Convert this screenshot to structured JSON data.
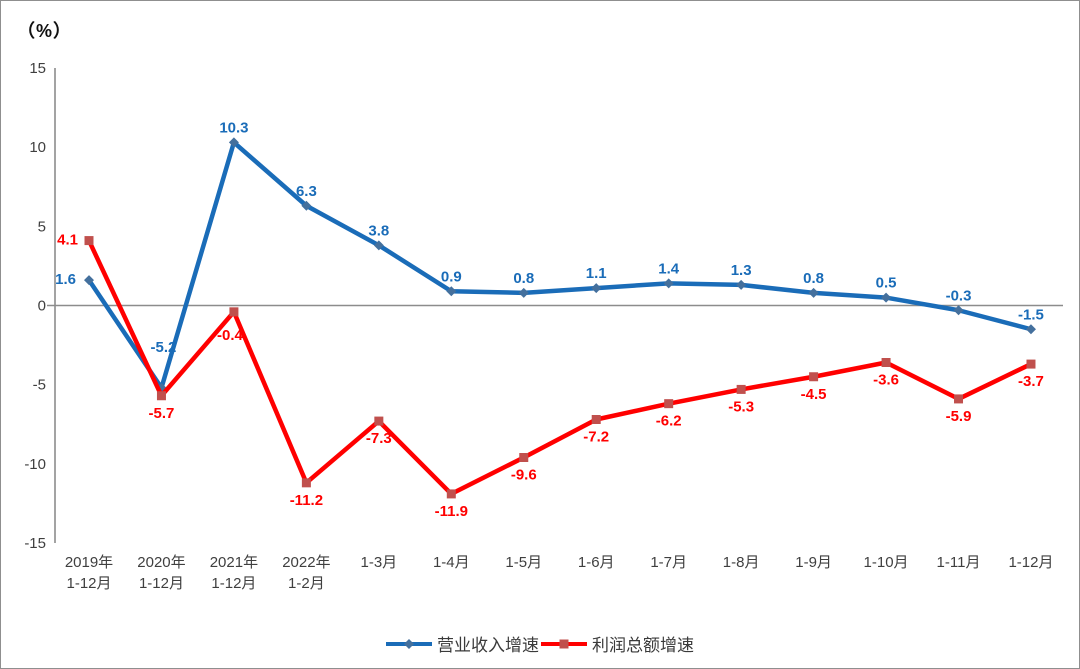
{
  "page": {
    "unit_label": "（%）"
  },
  "chart_data": {
    "type": "line",
    "title": "",
    "ylabel": "（%）",
    "ylim": [
      -15,
      15
    ],
    "yticks": [
      15,
      10,
      5,
      0,
      -5,
      -10,
      -15
    ],
    "grid": "zero-line-only",
    "legend_position": "bottom-center",
    "axis_color": "#8c8c8c",
    "tick_label_color": "#3f3f3f",
    "categories": [
      "2019年\n1-12月",
      "2020年\n1-12月",
      "2021年\n1-12月",
      "2022年\n1-2月",
      "1-3月",
      "1-4月",
      "1-5月",
      "1-6月",
      "1-7月",
      "1-8月",
      "1-9月",
      "1-10月",
      "1-11月",
      "1-12月"
    ],
    "series": [
      {
        "name": "营业收入增速",
        "color": "#1a6cb8",
        "marker": "diamond",
        "marker_color": "#44709d",
        "label_color": "#1a6cb8",
        "values": [
          1.6,
          -5.2,
          10.3,
          6.3,
          3.8,
          0.9,
          0.8,
          1.1,
          1.4,
          1.3,
          0.8,
          0.5,
          -0.3,
          -1.5
        ]
      },
      {
        "name": "利润总额增速",
        "color": "#ff0000",
        "marker": "square",
        "marker_color": "#c0504d",
        "label_color": "#ff0000",
        "values": [
          4.1,
          -5.7,
          -0.4,
          -11.2,
          -7.3,
          -11.9,
          -9.6,
          -7.2,
          -6.2,
          -5.3,
          -4.5,
          -3.6,
          -5.9,
          -3.7
        ]
      }
    ]
  }
}
